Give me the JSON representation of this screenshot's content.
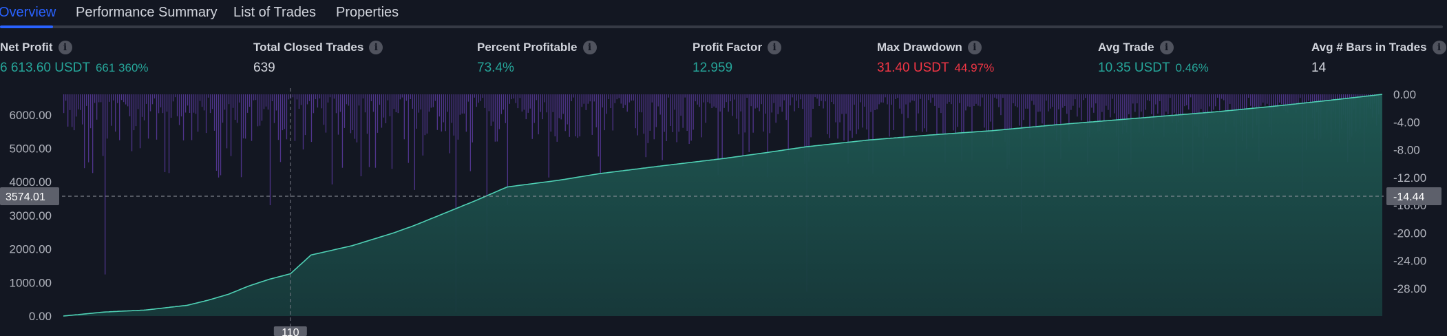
{
  "tabs": [
    {
      "label": "Overview",
      "active": true
    },
    {
      "label": "Performance Summary",
      "active": false
    },
    {
      "label": "List of Trades",
      "active": false
    },
    {
      "label": "Properties",
      "active": false
    }
  ],
  "metrics": {
    "net_profit": {
      "label": "Net Profit",
      "value": "6 613.60 USDT",
      "pct": "661 360%"
    },
    "total_closed_trades": {
      "label": "Total Closed Trades",
      "value": "639"
    },
    "percent_profitable": {
      "label": "Percent Profitable",
      "value": "73.4%"
    },
    "profit_factor": {
      "label": "Profit Factor",
      "value": "12.959"
    },
    "max_drawdown": {
      "label": "Max Drawdown",
      "value": "31.40 USDT",
      "pct": "44.97%"
    },
    "avg_trade": {
      "label": "Avg Trade",
      "value": "10.35 USDT",
      "pct": "0.46%"
    },
    "avg_bars": {
      "label": "Avg # Bars in Trades",
      "value": "14"
    }
  },
  "colors": {
    "accent": "#2962ff",
    "positive": "#26a69a",
    "negative": "#f23645",
    "equity_line": "#4fd1b5",
    "drawdown_bar": "#5b3a9e"
  },
  "chart_data": {
    "type": "area",
    "left_axis": {
      "ticks": [
        "6000.00",
        "5000.00",
        "4000.00",
        "3000.00",
        "2000.00",
        "1000.00",
        "0.00"
      ],
      "range": [
        0,
        6613.6
      ]
    },
    "right_axis": {
      "ticks": [
        "0.00",
        "-4.00",
        "-8.00",
        "-12.00",
        "-16.00",
        "-20.00",
        "-24.00",
        "-28.00"
      ],
      "range": [
        -32,
        0
      ]
    },
    "crosshair": {
      "left_value": "3574.01",
      "right_value": "-14.44",
      "x_value": "110"
    },
    "trades_count": 639,
    "equity_series": {
      "name": "Equity",
      "points": [
        [
          0,
          0
        ],
        [
          10,
          60
        ],
        [
          20,
          120
        ],
        [
          40,
          180
        ],
        [
          60,
          320
        ],
        [
          70,
          470
        ],
        [
          80,
          650
        ],
        [
          90,
          900
        ],
        [
          100,
          1100
        ],
        [
          110,
          1260
        ],
        [
          120,
          1820
        ],
        [
          140,
          2100
        ],
        [
          160,
          2480
        ],
        [
          170,
          2700
        ],
        [
          190,
          3200
        ],
        [
          200,
          3450
        ],
        [
          215,
          3850
        ],
        [
          240,
          4050
        ],
        [
          260,
          4250
        ],
        [
          290,
          4480
        ],
        [
          320,
          4700
        ],
        [
          340,
          4870
        ],
        [
          360,
          5050
        ],
        [
          390,
          5250
        ],
        [
          420,
          5400
        ],
        [
          450,
          5530
        ],
        [
          480,
          5700
        ],
        [
          520,
          5900
        ],
        [
          560,
          6100
        ],
        [
          590,
          6280
        ],
        [
          620,
          6480
        ],
        [
          639,
          6613.6
        ]
      ]
    },
    "drawdown_series": {
      "name": "Drawdown",
      "notable": [
        [
          20,
          -26.0
        ],
        [
          50,
          -2.5
        ],
        [
          75,
          -12.0
        ],
        [
          100,
          -16.0
        ],
        [
          130,
          -13.0
        ],
        [
          170,
          -13.8
        ],
        [
          190,
          -31.4
        ],
        [
          205,
          -24.0
        ],
        [
          215,
          -16.0
        ],
        [
          235,
          -12.0
        ],
        [
          260,
          -12.0
        ],
        [
          290,
          -9.5
        ],
        [
          360,
          -28.5
        ],
        [
          440,
          -9.5
        ],
        [
          464,
          -20.0
        ],
        [
          475,
          -14.0
        ],
        [
          540,
          -4.0
        ],
        [
          600,
          -14.0
        ],
        [
          630,
          -10.0
        ]
      ]
    }
  }
}
